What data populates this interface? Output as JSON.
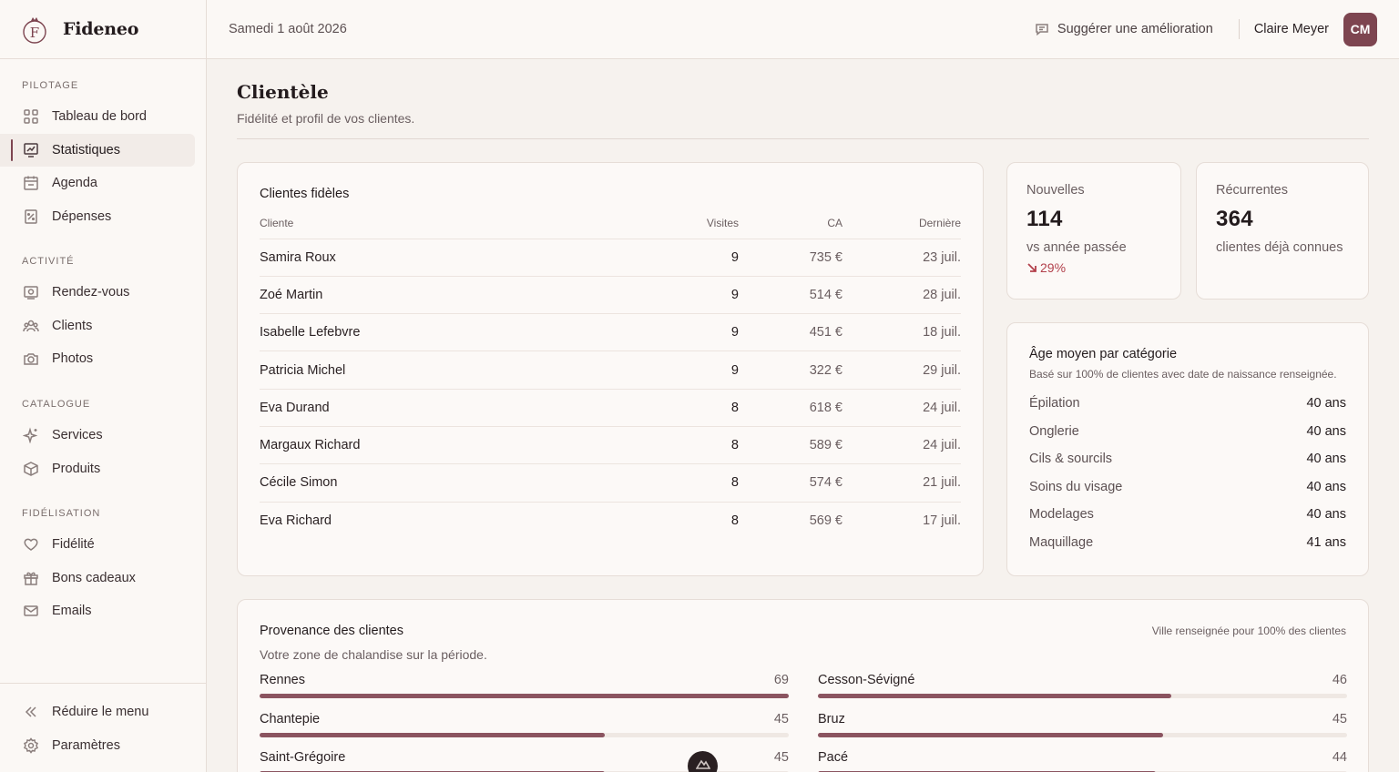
{
  "app": {
    "name": "Fideneo"
  },
  "topbar": {
    "date": "Samedi 1 août 2026",
    "suggest_label": "Suggérer une amélioration",
    "user_name": "Claire Meyer",
    "user_initials": "CM"
  },
  "sidebar": {
    "sections": [
      {
        "label": "PILOTAGE",
        "items": [
          {
            "label": "Tableau de bord",
            "icon": "dashboard-icon"
          },
          {
            "label": "Statistiques",
            "icon": "chart-icon",
            "active": true
          },
          {
            "label": "Agenda",
            "icon": "calendar-icon"
          },
          {
            "label": "Dépenses",
            "icon": "receipt-icon"
          }
        ]
      },
      {
        "label": "ACTIVITÉ",
        "items": [
          {
            "label": "Rendez-vous",
            "icon": "appointment-icon"
          },
          {
            "label": "Clients",
            "icon": "users-icon"
          },
          {
            "label": "Photos",
            "icon": "camera-icon"
          }
        ]
      },
      {
        "label": "CATALOGUE",
        "items": [
          {
            "label": "Services",
            "icon": "sparkle-icon"
          },
          {
            "label": "Produits",
            "icon": "box-icon"
          }
        ]
      },
      {
        "label": "FIDÉLISATION",
        "items": [
          {
            "label": "Fidélité",
            "icon": "heart-icon"
          },
          {
            "label": "Bons cadeaux",
            "icon": "gift-icon"
          },
          {
            "label": "Emails",
            "icon": "mail-icon"
          }
        ]
      }
    ],
    "bottom": [
      {
        "label": "Réduire le menu",
        "icon": "collapse-icon"
      },
      {
        "label": "Paramètres",
        "icon": "settings-icon"
      }
    ]
  },
  "page": {
    "title": "Clientèle",
    "subtitle": "Fidélité et profil de vos clientes."
  },
  "loyal": {
    "title": "Clientes fidèles",
    "columns": [
      "Cliente",
      "Visites",
      "CA",
      "Dernière"
    ],
    "rows": [
      [
        "Samira Roux",
        "9",
        "735 €",
        "23 juil."
      ],
      [
        "Zoé Martin",
        "9",
        "514 €",
        "28 juil."
      ],
      [
        "Isabelle Lefebvre",
        "9",
        "451 €",
        "18 juil."
      ],
      [
        "Patricia Michel",
        "9",
        "322 €",
        "29 juil."
      ],
      [
        "Eva Durand",
        "8",
        "618 €",
        "24 juil."
      ],
      [
        "Margaux Richard",
        "8",
        "589 €",
        "24 juil."
      ],
      [
        "Cécile Simon",
        "8",
        "574 €",
        "21 juil."
      ],
      [
        "Eva Richard",
        "8",
        "569 €",
        "17 juil."
      ]
    ]
  },
  "stats": {
    "new": {
      "label": "Nouvelles",
      "value": "114",
      "note": "vs année passée",
      "trend": "29%"
    },
    "recurring": {
      "label": "Récurrentes",
      "value": "364",
      "note": "clientes déjà connues"
    }
  },
  "age": {
    "title": "Âge moyen par catégorie",
    "subtitle": "Basé sur 100% de clientes avec date de naissance renseignée.",
    "rows": [
      [
        "Épilation",
        "40 ans"
      ],
      [
        "Onglerie",
        "40 ans"
      ],
      [
        "Cils & sourcils",
        "40 ans"
      ],
      [
        "Soins du visage",
        "40 ans"
      ],
      [
        "Modelages",
        "40 ans"
      ],
      [
        "Maquillage",
        "41 ans"
      ]
    ]
  },
  "provenance": {
    "title": "Provenance des clientes",
    "note": "Ville renseignée pour 100% des clientes",
    "subtitle": "Votre zone de chalandise sur la période.",
    "cities": [
      {
        "name": "Rennes",
        "count": "69",
        "share": 1.0
      },
      {
        "name": "Cesson-Sévigné",
        "count": "46",
        "share": 0.667
      },
      {
        "name": "Chantepie",
        "count": "45",
        "share": 0.652
      },
      {
        "name": "Bruz",
        "count": "45",
        "share": 0.652
      },
      {
        "name": "Saint-Grégoire",
        "count": "45",
        "share": 0.652
      },
      {
        "name": "Pacé",
        "count": "44",
        "share": 0.638
      }
    ]
  },
  "colors": {
    "accent": "#7d4550",
    "bar": "#8b5460",
    "negative": "#b2404b"
  }
}
